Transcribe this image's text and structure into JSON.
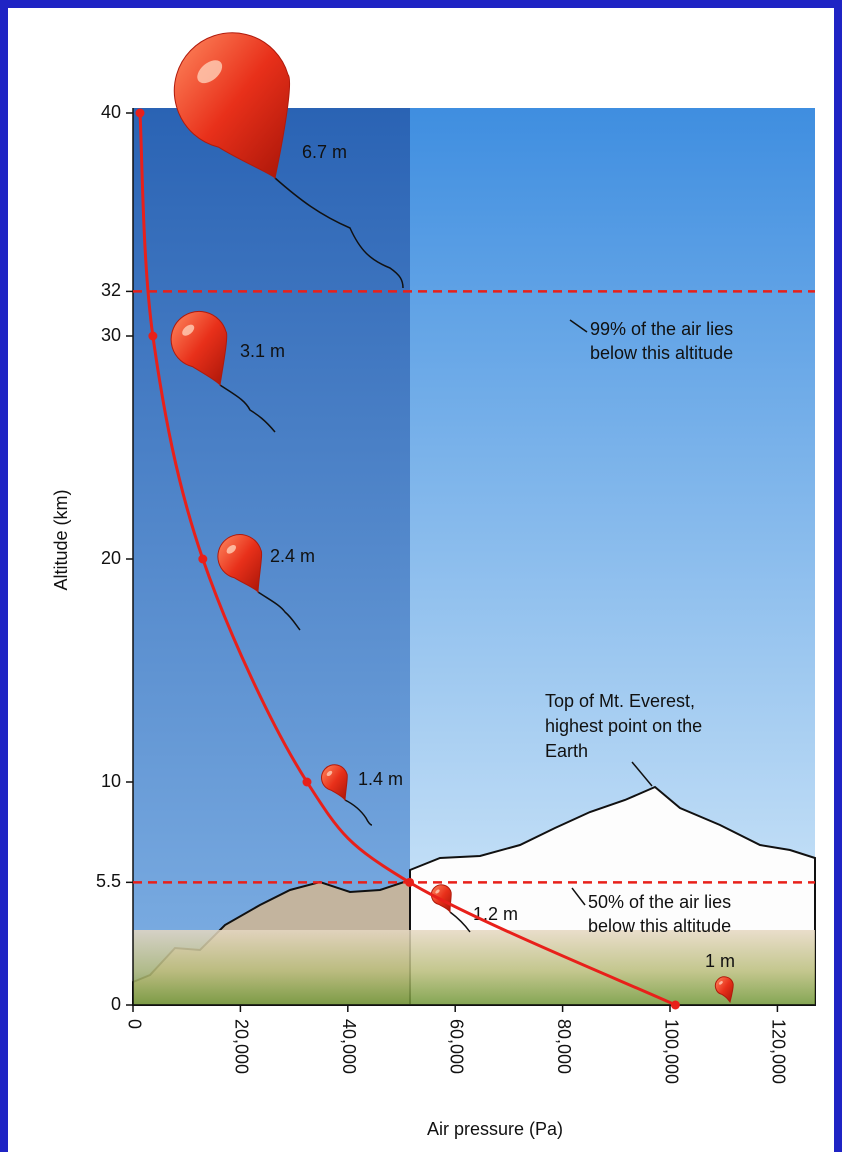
{
  "chart_data": {
    "type": "line",
    "x_label": "Air pressure (Pa)",
    "y_label": "Altitude (km)",
    "xlim": [
      0,
      127000
    ],
    "ylim": [
      0,
      40
    ],
    "xticks": [
      0,
      {
        "value": 20000,
        "label": "20,000"
      },
      {
        "value": 40000,
        "label": "40,000"
      },
      {
        "value": 60000,
        "label": "60,000"
      },
      {
        "value": 80000,
        "label": "80,000"
      },
      {
        "value": 100000,
        "label": "100,000"
      },
      {
        "value": 120000,
        "label": "120,000"
      }
    ],
    "yticks": [
      0,
      5.5,
      10,
      20,
      30,
      32,
      40
    ],
    "series": [
      {
        "name": "Pressure",
        "color": "#e8201a",
        "x": [
          1300,
          3700,
          13000,
          32400,
          51500,
          101000
        ],
        "values": [
          40,
          30,
          20,
          10,
          5.5,
          0
        ]
      }
    ],
    "balloons": [
      "6.7 m",
      "3.1 m",
      "2.4 m",
      "1.4 m",
      "1.2 m",
      "1 m"
    ],
    "reference_lines": [
      {
        "y": 32,
        "label": [
          "99% of the air lies",
          "below this altitude"
        ]
      },
      {
        "y": 5.5,
        "label": [
          "50% of the air lies",
          "below this altitude"
        ]
      }
    ],
    "everest_label": [
      "Top of Mt. Everest,",
      "highest point on the",
      "Earth"
    ]
  }
}
